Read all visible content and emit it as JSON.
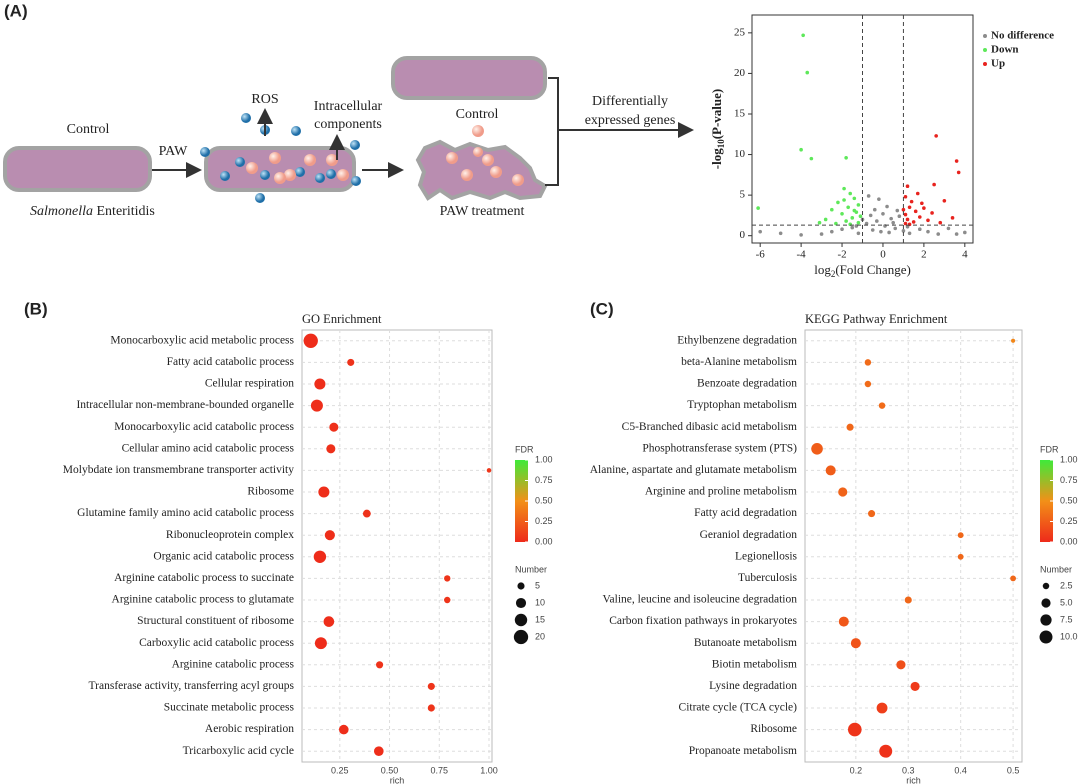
{
  "panel_labels": [
    "(A)",
    "(B)",
    "(C)"
  ],
  "diagram": {
    "control_label": "Control",
    "paw_label": "PAW",
    "ros_label": "ROS",
    "components_label": [
      "Intracellular",
      "components"
    ],
    "organism": {
      "genus": "Salmonella",
      "rest": "Enteritidis"
    },
    "control_label_2": "Control",
    "treatment_label": "PAW treatment",
    "deg_label": [
      "Differentially",
      "expressed genes"
    ]
  },
  "chart_data": [
    {
      "type": "scatter",
      "xlabel": {
        "base": "log",
        "sub": "2",
        "rest": "(Fold Change)"
      },
      "ylabel": {
        "base": "-log",
        "sub": "10",
        "rest": "(P-value)"
      },
      "xlim": [
        -6.4,
        4.4
      ],
      "ylim": [
        -0.9,
        27.2
      ],
      "xticks": [
        -6,
        -4,
        -2,
        0,
        2,
        4
      ],
      "yticks": [
        0,
        5,
        10,
        15,
        20,
        25
      ],
      "thresholds": {
        "x": [
          -1,
          1
        ],
        "y": 1.3
      },
      "legend": "top-right",
      "series": [
        {
          "name": "No difference",
          "color": "#8c8c8c",
          "x": [
            -3,
            -2.5,
            -2,
            -1.5,
            -1.2,
            -1,
            -0.8,
            -0.6,
            -0.5,
            -0.4,
            -0.3,
            -0.2,
            -0.1,
            0,
            0.1,
            0.2,
            0.3,
            0.4,
            0.5,
            0.6,
            0.8,
            1.0,
            1.3,
            1.8,
            2.2,
            2.7,
            3.2,
            -4,
            -5,
            -0.7,
            0.7,
            -1.3,
            1.2,
            -6,
            4,
            3.6
          ],
          "values": [
            0.2,
            0.5,
            0.8,
            1.0,
            0.3,
            2,
            1.5,
            2.5,
            0.7,
            3.2,
            1.8,
            4.5,
            0.5,
            2.7,
            1.2,
            3.6,
            0.4,
            2.1,
            1.6,
            0.9,
            2.4,
            0.6,
            0.3,
            0.8,
            0.5,
            0.2,
            0.9,
            0.1,
            0.3,
            4.9,
            3.1,
            1.2,
            1.1,
            0.5,
            0.4,
            0.2
          ]
        },
        {
          "name": "Down",
          "color": "#5ee85a",
          "x": [
            -3.9,
            -3.7,
            -4,
            -3.5,
            -1.8,
            -6.1,
            -1.9,
            -1.6,
            -1.4,
            -2.2,
            -1.2,
            -1.7,
            -2.5,
            -1.3,
            -2.0,
            -1.1,
            -1.5,
            -2.8,
            -1.8,
            -1.2,
            -2.3,
            -1.6,
            -1.4,
            -1.9,
            -3.1
          ],
          "values": [
            24.7,
            20.1,
            10.6,
            9.5,
            9.6,
            3.4,
            5.8,
            5.2,
            4.6,
            4.1,
            3.8,
            3.5,
            3.2,
            2.9,
            2.7,
            2.4,
            2.2,
            2.0,
            1.8,
            1.6,
            1.5,
            1.4,
            3.1,
            4.4,
            1.6
          ]
        },
        {
          "name": "Up",
          "color": "#e8231e",
          "x": [
            2.6,
            3.6,
            3.7,
            2.5,
            1.2,
            1.1,
            1.4,
            1.3,
            1.6,
            1.1,
            1.8,
            1.2,
            2.2,
            1.5,
            1.1,
            2.8,
            3.0,
            2.0,
            1.7,
            3.4,
            1.3,
            2.4,
            1.0,
            1.9
          ],
          "values": [
            12.3,
            9.2,
            7.8,
            6.3,
            6.1,
            4.8,
            4.2,
            3.5,
            3.0,
            2.6,
            2.3,
            2.0,
            1.9,
            1.7,
            1.5,
            1.6,
            4.3,
            3.4,
            5.2,
            2.2,
            1.4,
            2.8,
            3.2,
            4.0
          ]
        }
      ]
    },
    {
      "type": "bubble",
      "title": "GO Enrichment",
      "xlabel": "rich",
      "categories": [
        "Monocarboxylic acid metabolic process",
        "Fatty acid catabolic process",
        "Cellular respiration",
        "Intracellular non-membrane-bounded organelle",
        "Monocarboxylic acid catabolic process",
        "Cellular amino acid catabolic process",
        "Molybdate ion transmembrane transporter activity",
        "Ribosome",
        "Glutamine family amino acid catabolic process",
        "Ribonucleoprotein complex",
        "Organic acid catabolic process",
        "Arginine catabolic process to succinate",
        "Arginine catabolic process to glutamate",
        "Structural constituent of ribosome",
        "Carboxylic acid catabolic process",
        "Arginine catabolic process",
        "Transferase activity, transferring acyl groups",
        "Succinate metabolic process",
        "Aerobic respiration",
        "Tricarboxylic acid cycle"
      ],
      "values": [
        0.104,
        0.305,
        0.15,
        0.135,
        0.22,
        0.205,
        1.0,
        0.17,
        0.386,
        0.2,
        0.15,
        0.79,
        0.79,
        0.195,
        0.155,
        0.45,
        0.71,
        0.71,
        0.27,
        0.446
      ],
      "sizes": [
        20,
        5,
        12,
        14,
        8,
        8,
        2,
        12,
        6,
        10,
        15,
        4,
        4,
        11,
        14,
        5,
        5,
        5,
        9,
        9
      ],
      "fdr": [
        0.01,
        0.04,
        0.02,
        0.02,
        0.03,
        0.03,
        0.06,
        0.02,
        0.04,
        0.02,
        0.01,
        0.05,
        0.05,
        0.02,
        0.01,
        0.04,
        0.05,
        0.05,
        0.02,
        0.02
      ],
      "xlim": [
        0.06,
        1.015
      ],
      "xticks": [
        0.25,
        {
          "value": 0.5,
          "label": "0.50"
        },
        0.75,
        {
          "value": 1,
          "label": "1.00"
        }
      ],
      "grid": true,
      "color_title": "FDR",
      "color_scale": [
        "#ee2a1a",
        "#f29018",
        "#3eea3a"
      ],
      "clim": [
        0,
        1
      ],
      "cticks": [
        {
          "value": 0,
          "label": "0.00"
        },
        0.25,
        {
          "value": 0.5,
          "label": "0.50"
        },
        0.75,
        {
          "value": 1,
          "label": "1.00"
        }
      ],
      "size_title": "Number",
      "size_legend": [
        5,
        10,
        15,
        20
      ]
    },
    {
      "type": "bubble",
      "title": "KEGG Pathway Enrichment",
      "xlabel": "rich",
      "categories": [
        "Ethylbenzene degradation",
        "beta-Alanine metabolism",
        "Benzoate degradation",
        "Tryptophan metabolism",
        "C5-Branched dibasic acid metabolism",
        "Phosphotransferase system (PTS)",
        "Alanine, aspartate and glutamate metabolism",
        "Arginine and proline metabolism",
        "Fatty acid degradation",
        "Geraniol degradation",
        "Legionellosis",
        "Tuberculosis",
        "Valine, leucine and isoleucine degradation",
        "Carbon fixation pathways in prokaryotes",
        "Butanoate metabolism",
        "Biotin metabolism",
        "Lysine degradation",
        "Citrate cycle (TCA cycle)",
        "Ribosome",
        "Propanoate metabolism"
      ],
      "values": [
        0.5,
        0.223,
        0.223,
        0.25,
        0.189,
        0.126,
        0.152,
        0.175,
        0.23,
        0.4,
        0.4,
        0.5,
        0.3,
        0.177,
        0.2,
        0.286,
        0.313,
        0.25,
        0.198,
        0.257
      ],
      "sizes": [
        1,
        2.5,
        2.5,
        2.5,
        3,
        8,
        6,
        5,
        3,
        2,
        2,
        2,
        3,
        6,
        6,
        5,
        5,
        7,
        11,
        10
      ],
      "fdr": [
        0.45,
        0.32,
        0.32,
        0.32,
        0.3,
        0.25,
        0.25,
        0.28,
        0.3,
        0.3,
        0.3,
        0.3,
        0.3,
        0.22,
        0.2,
        0.18,
        0.08,
        0.1,
        0.05,
        0.04
      ],
      "xlim": [
        0.103,
        0.517
      ],
      "xticks": [
        0.2,
        0.3,
        0.4,
        0.5
      ],
      "grid": true,
      "color_title": "FDR",
      "color_scale": [
        "#ee2a1a",
        "#f29018",
        "#3eea3a"
      ],
      "clim": [
        0,
        1
      ],
      "cticks": [
        {
          "value": 0,
          "label": "0.00"
        },
        0.25,
        {
          "value": 0.5,
          "label": "0.50"
        },
        0.75,
        {
          "value": 1,
          "label": "1.00"
        }
      ],
      "size_title": "Number",
      "size_legend": [
        2.5,
        {
          "value": 5,
          "label": "5.0"
        },
        7.5,
        {
          "value": 10,
          "label": "10.0"
        }
      ]
    }
  ]
}
